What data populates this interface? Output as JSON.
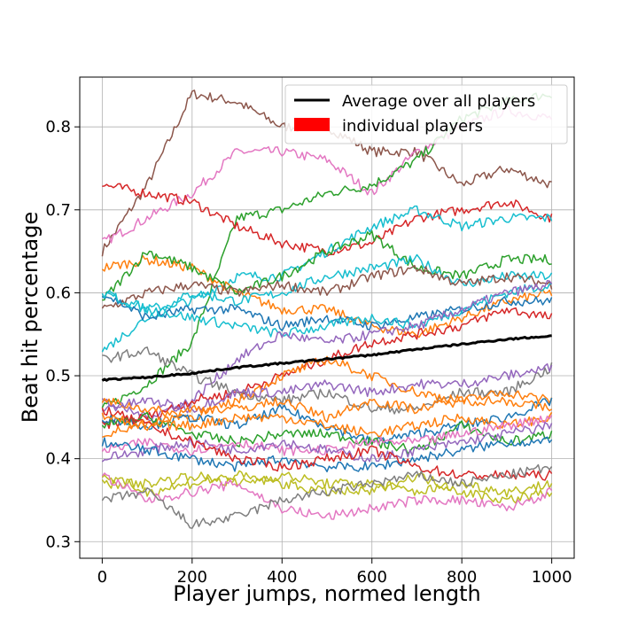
{
  "chart_data": {
    "type": "line",
    "xlabel": "Player jumps, normed length",
    "ylabel": "Beat hit percentage",
    "xlim": [
      -50,
      1050
    ],
    "ylim": [
      0.28,
      0.86
    ],
    "xticks": [
      0,
      200,
      400,
      600,
      800,
      1000
    ],
    "yticks": [
      0.3,
      0.4,
      0.5,
      0.6,
      0.7,
      0.8
    ],
    "xtick_labels": [
      "0",
      "200",
      "400",
      "600",
      "800",
      "1000"
    ],
    "ytick_labels": [
      "0.3",
      "0.4",
      "0.5",
      "0.6",
      "0.7",
      "0.8"
    ],
    "grid": true,
    "legend": {
      "position": "top-right",
      "entries": [
        {
          "label": "Average over all players",
          "color": "#000000",
          "kind": "line"
        },
        {
          "label": "individual players",
          "color": "#ff0000",
          "kind": "patch"
        }
      ]
    },
    "average": {
      "name": "Average over all players",
      "color": "#000000",
      "x": [
        0,
        100,
        200,
        300,
        400,
        500,
        600,
        700,
        800,
        900,
        1000
      ],
      "y": [
        0.495,
        0.498,
        0.503,
        0.51,
        0.515,
        0.52,
        0.525,
        0.532,
        0.538,
        0.544,
        0.548
      ]
    },
    "players": {
      "x": [
        0,
        100,
        200,
        300,
        400,
        500,
        600,
        700,
        800,
        900,
        1000
      ],
      "lines": [
        {
          "color": "#8c564b",
          "y": [
            0.65,
            0.73,
            0.84,
            0.83,
            0.8,
            0.8,
            0.77,
            0.77,
            0.73,
            0.75,
            0.73
          ]
        },
        {
          "color": "#e377c2",
          "y": [
            0.66,
            0.69,
            0.72,
            0.77,
            0.77,
            0.76,
            0.72,
            0.77,
            0.8,
            0.82,
            0.81
          ]
        },
        {
          "color": "#2ca02c",
          "y": [
            0.46,
            0.49,
            0.54,
            0.69,
            0.7,
            0.72,
            0.73,
            0.76,
            0.81,
            0.83,
            0.84
          ]
        },
        {
          "color": "#d62728",
          "y": [
            0.73,
            0.72,
            0.71,
            0.68,
            0.66,
            0.65,
            0.66,
            0.69,
            0.7,
            0.71,
            0.69
          ]
        },
        {
          "color": "#17becf",
          "y": [
            0.6,
            0.58,
            0.59,
            0.62,
            0.62,
            0.65,
            0.68,
            0.7,
            0.68,
            0.69,
            0.69
          ]
        },
        {
          "color": "#ff7f0e",
          "y": [
            0.63,
            0.64,
            0.63,
            0.6,
            0.58,
            0.58,
            0.56,
            0.55,
            0.57,
            0.59,
            0.6
          ]
        },
        {
          "color": "#2ca02c",
          "y": [
            0.59,
            0.65,
            0.63,
            0.6,
            0.62,
            0.65,
            0.67,
            0.63,
            0.62,
            0.64,
            0.64
          ]
        },
        {
          "color": "#17becf",
          "y": [
            0.53,
            0.57,
            0.6,
            0.59,
            0.6,
            0.62,
            0.63,
            0.64,
            0.61,
            0.62,
            0.62
          ]
        },
        {
          "color": "#8c564b",
          "y": [
            0.58,
            0.6,
            0.61,
            0.6,
            0.61,
            0.6,
            0.62,
            0.63,
            0.61,
            0.62,
            0.61
          ]
        },
        {
          "color": "#1f77b4",
          "y": [
            0.6,
            0.57,
            0.58,
            0.58,
            0.56,
            0.57,
            0.56,
            0.57,
            0.58,
            0.59,
            0.59
          ]
        },
        {
          "color": "#17becf",
          "y": [
            0.6,
            0.58,
            0.57,
            0.56,
            0.55,
            0.56,
            0.57,
            0.56,
            0.58,
            0.6,
            0.61
          ]
        },
        {
          "color": "#9467bd",
          "y": [
            0.47,
            0.45,
            0.47,
            0.52,
            0.55,
            0.54,
            0.55,
            0.56,
            0.58,
            0.6,
            0.61
          ]
        },
        {
          "color": "#d62728",
          "y": [
            0.44,
            0.45,
            0.47,
            0.48,
            0.5,
            0.52,
            0.54,
            0.55,
            0.56,
            0.58,
            0.57
          ]
        },
        {
          "color": "#7f7f7f",
          "y": [
            0.52,
            0.53,
            0.5,
            0.48,
            0.47,
            0.48,
            0.46,
            0.46,
            0.48,
            0.48,
            0.51
          ]
        },
        {
          "color": "#ff7f0e",
          "y": [
            0.47,
            0.46,
            0.45,
            0.47,
            0.5,
            0.52,
            0.5,
            0.48,
            0.47,
            0.48,
            0.47
          ]
        },
        {
          "color": "#9467bd",
          "y": [
            0.46,
            0.47,
            0.46,
            0.48,
            0.48,
            0.49,
            0.48,
            0.49,
            0.49,
            0.5,
            0.51
          ]
        },
        {
          "color": "#1f77b4",
          "y": [
            0.45,
            0.44,
            0.45,
            0.44,
            0.46,
            0.44,
            0.42,
            0.43,
            0.44,
            0.45,
            0.47
          ]
        },
        {
          "color": "#2ca02c",
          "y": [
            0.44,
            0.45,
            0.43,
            0.42,
            0.43,
            0.43,
            0.42,
            0.41,
            0.44,
            0.42,
            0.43
          ]
        },
        {
          "color": "#ff7f0e",
          "y": [
            0.43,
            0.44,
            0.44,
            0.45,
            0.45,
            0.44,
            0.43,
            0.44,
            0.45,
            0.44,
            0.45
          ]
        },
        {
          "color": "#e377c2",
          "y": [
            0.41,
            0.42,
            0.41,
            0.42,
            0.41,
            0.41,
            0.42,
            0.42,
            0.43,
            0.44,
            0.45
          ]
        },
        {
          "color": "#9467bd",
          "y": [
            0.4,
            0.41,
            0.42,
            0.41,
            0.42,
            0.41,
            0.4,
            0.41,
            0.42,
            0.43,
            0.44
          ]
        },
        {
          "color": "#1f77b4",
          "y": [
            0.42,
            0.41,
            0.4,
            0.39,
            0.4,
            0.39,
            0.39,
            0.4,
            0.41,
            0.42,
            0.42
          ]
        },
        {
          "color": "#d62728",
          "y": [
            0.46,
            0.44,
            0.42,
            0.4,
            0.39,
            0.4,
            0.41,
            0.39,
            0.38,
            0.38,
            0.38
          ]
        },
        {
          "color": "#bcbd22",
          "y": [
            0.37,
            0.37,
            0.38,
            0.37,
            0.38,
            0.37,
            0.37,
            0.36,
            0.37,
            0.36,
            0.37
          ]
        },
        {
          "color": "#bcbd22",
          "y": [
            0.38,
            0.36,
            0.37,
            0.38,
            0.37,
            0.36,
            0.36,
            0.38,
            0.36,
            0.35,
            0.36
          ]
        },
        {
          "color": "#e377c2",
          "y": [
            0.38,
            0.35,
            0.36,
            0.37,
            0.34,
            0.33,
            0.34,
            0.35,
            0.35,
            0.34,
            0.36
          ]
        },
        {
          "color": "#7f7f7f",
          "y": [
            0.35,
            0.36,
            0.32,
            0.33,
            0.35,
            0.36,
            0.37,
            0.38,
            0.37,
            0.38,
            0.39
          ]
        },
        {
          "color": "#ff7f0e",
          "y": [
            0.45,
            0.44,
            0.46,
            0.46,
            0.47,
            0.45,
            0.47,
            0.46,
            0.47,
            0.47,
            0.46
          ]
        }
      ]
    }
  }
}
